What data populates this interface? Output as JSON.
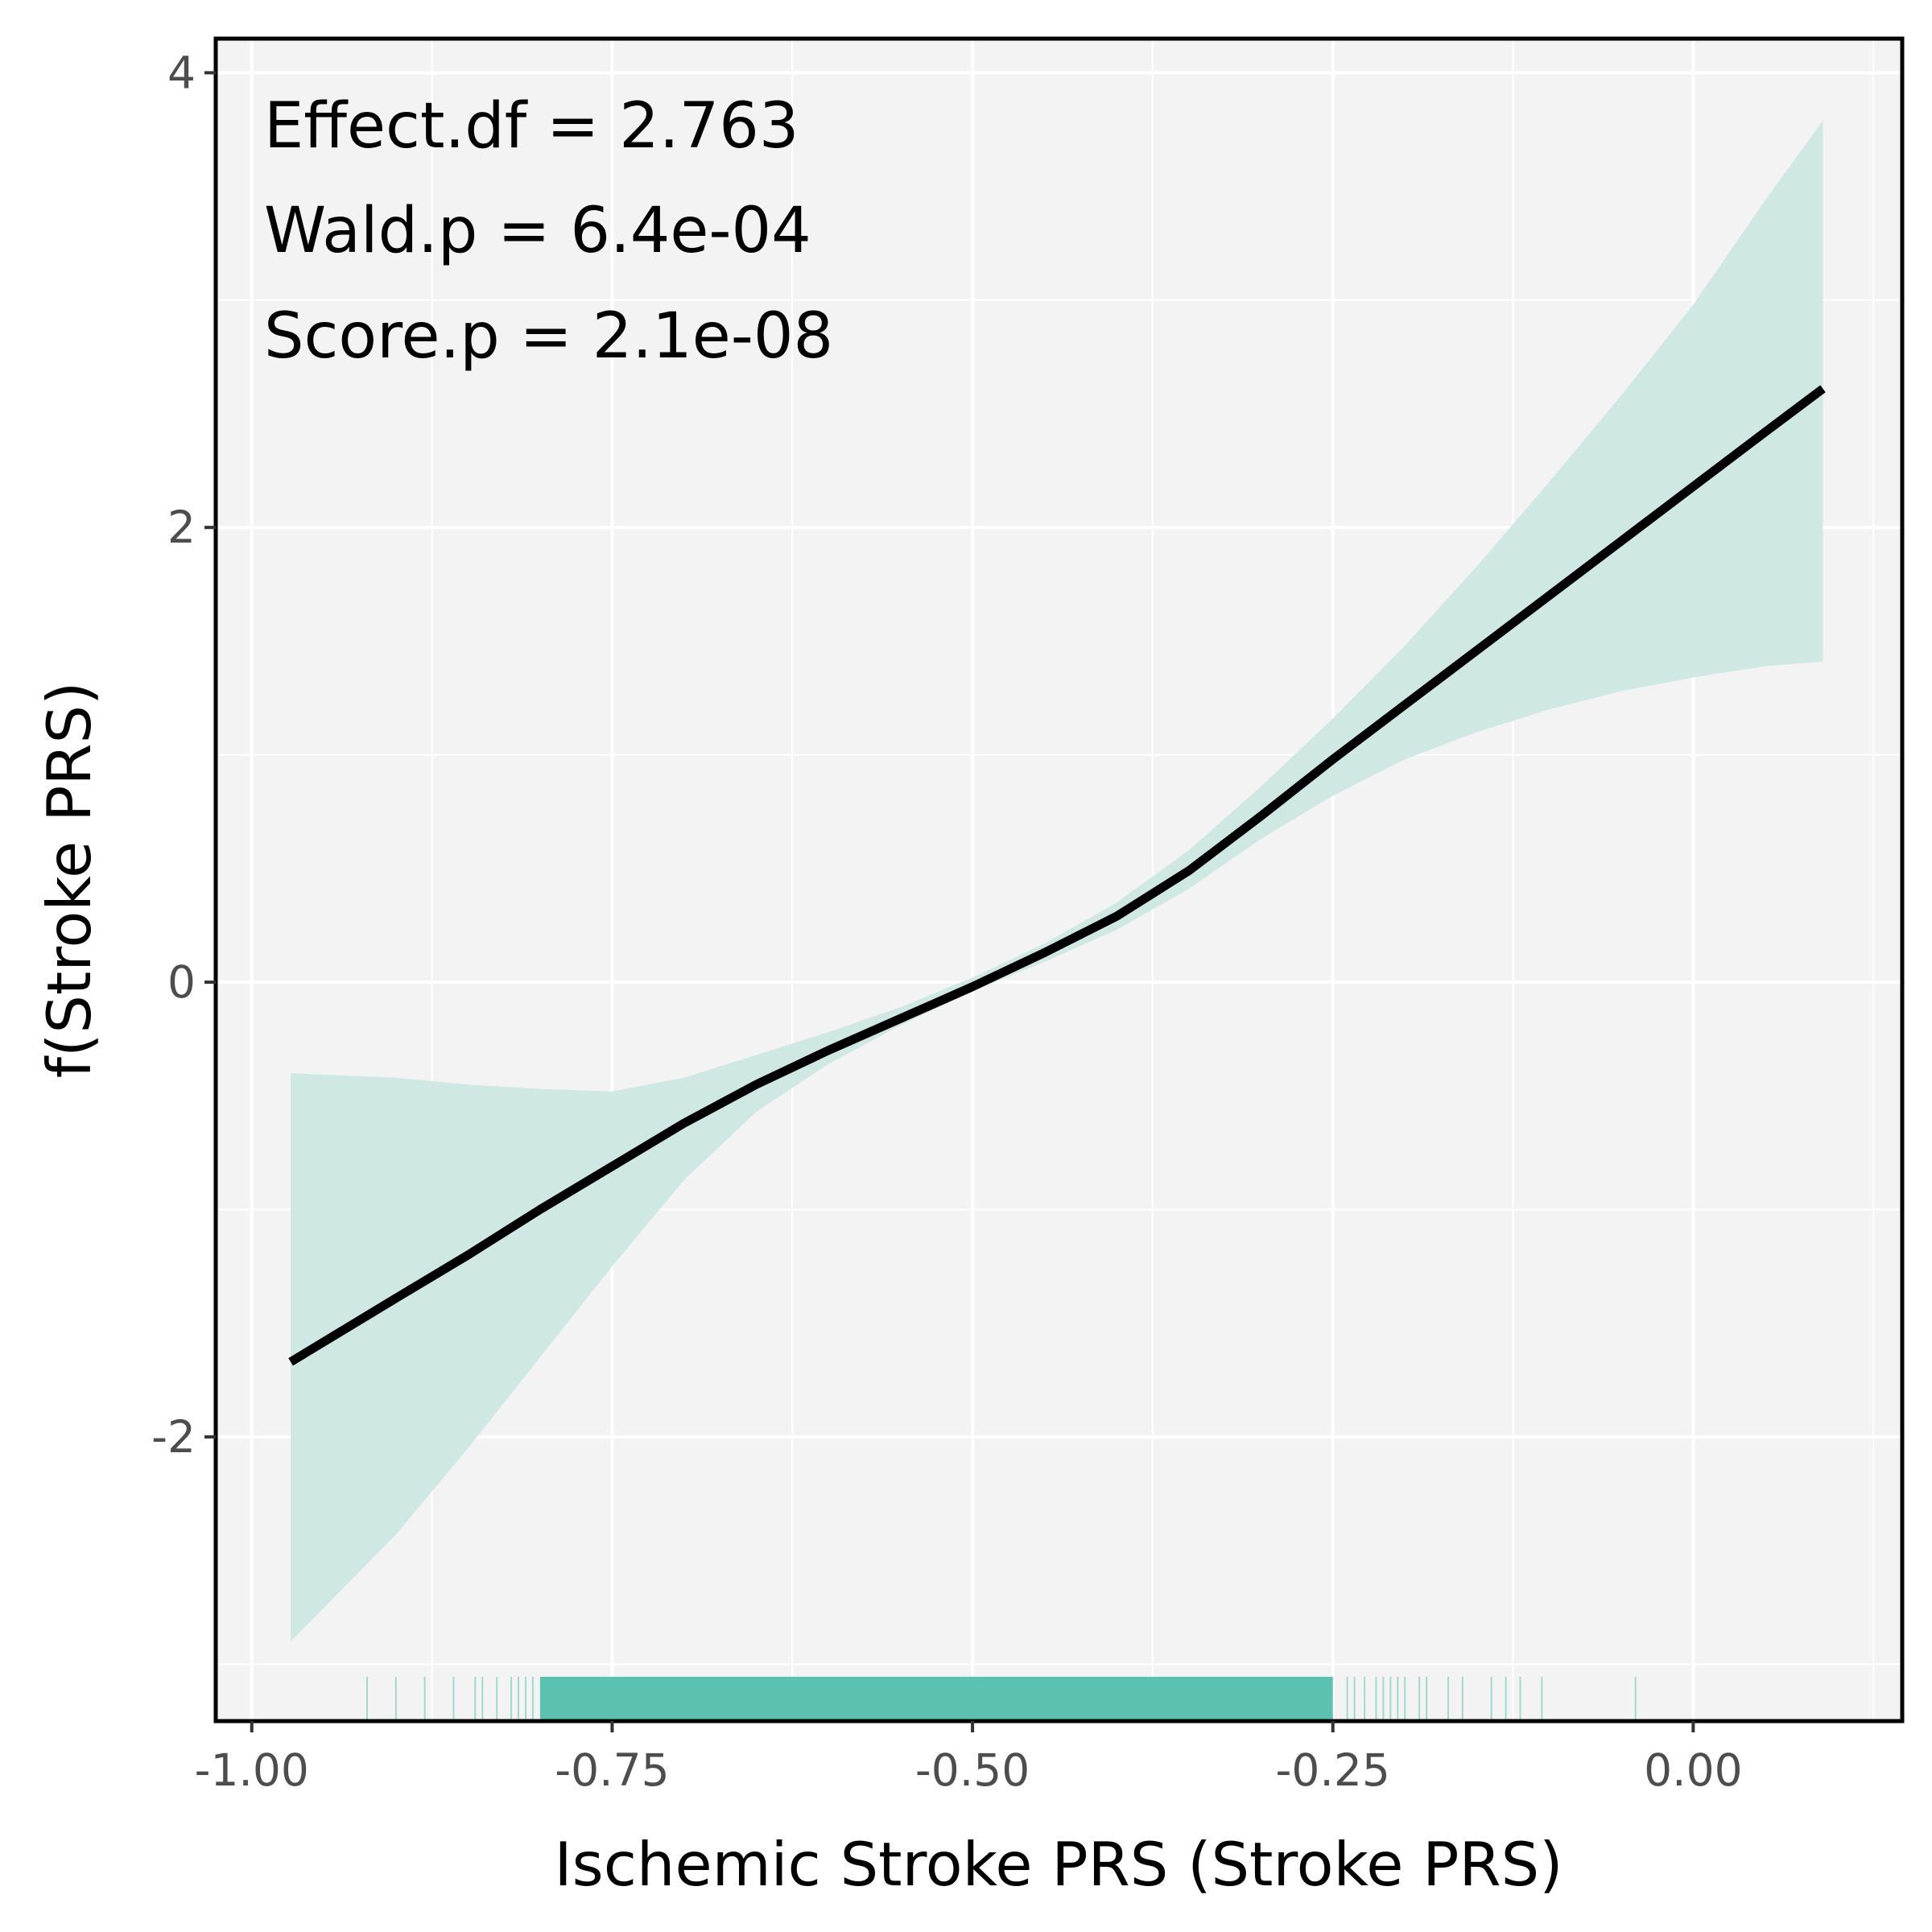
{
  "chart_data": {
    "type": "line",
    "title": "",
    "xlabel": "Ischemic Stroke PRS (Stroke PRS)",
    "ylabel": "f(Stroke PRS)",
    "xlim": [
      -1.025,
      0.145
    ],
    "ylim": [
      -3.25,
      4.15
    ],
    "x_ticks": [
      -1.0,
      -0.75,
      -0.5,
      -0.25,
      0.0
    ],
    "x_tick_labels": [
      "-1.00",
      "-0.75",
      "-0.50",
      "-0.25",
      "0.00"
    ],
    "y_ticks": [
      -2,
      0,
      2,
      4
    ],
    "y_tick_labels": [
      "-2",
      "0",
      "2",
      "4"
    ],
    "grid": true,
    "annotations": [
      "Effect.df = 2.763",
      "Wald.p = 6.4e-04",
      "Score.p = 2.1e-08"
    ],
    "series": [
      {
        "x": [
          -0.973,
          -0.9,
          -0.85,
          -0.8,
          -0.75,
          -0.7,
          -0.65,
          -0.6,
          -0.55,
          -0.5,
          -0.45,
          -0.4,
          -0.35,
          -0.3,
          -0.25,
          -0.2,
          -0.15,
          -0.1,
          -0.05,
          0.0,
          0.05,
          0.09
        ],
        "values": [
          -1.67,
          -1.39,
          -1.2,
          -1.0,
          -0.81,
          -0.62,
          -0.45,
          -0.3,
          -0.16,
          -0.02,
          0.13,
          0.29,
          0.49,
          0.73,
          0.98,
          1.22,
          1.46,
          1.7,
          1.94,
          2.18,
          2.42,
          2.61
        ],
        "lower": [
          -2.9,
          -2.43,
          -2.05,
          -1.65,
          -1.25,
          -0.87,
          -0.57,
          -0.36,
          -0.19,
          -0.04,
          0.09,
          0.23,
          0.41,
          0.63,
          0.82,
          0.98,
          1.1,
          1.2,
          1.28,
          1.34,
          1.39,
          1.41
        ],
        "upper": [
          -0.4,
          -0.42,
          -0.45,
          -0.47,
          -0.48,
          -0.42,
          -0.32,
          -0.22,
          -0.11,
          0.02,
          0.17,
          0.35,
          0.58,
          0.86,
          1.16,
          1.48,
          1.83,
          2.2,
          2.58,
          2.98,
          3.44,
          3.79
        ]
      }
    ],
    "rug": {
      "range": [
        -0.92,
        -0.04
      ],
      "dense_range": [
        -0.8,
        -0.25
      ],
      "sparse_x": [
        -0.92,
        -0.9,
        -0.88,
        -0.86,
        -0.845,
        -0.84,
        -0.83,
        -0.82,
        -0.815,
        -0.81,
        -0.805,
        -0.79,
        -0.785,
        -0.78,
        -0.775,
        -0.772,
        -0.24,
        -0.235,
        -0.228,
        -0.22,
        -0.215,
        -0.21,
        -0.205,
        -0.2,
        -0.19,
        -0.185,
        -0.17,
        -0.16,
        -0.14,
        -0.13,
        -0.12,
        -0.105,
        -0.04
      ]
    },
    "colors": {
      "line": "#000000",
      "ribbon": "#cfe8e4",
      "rug": "#5cc2b0",
      "panel": "#f3f3f3",
      "grid": "#ffffff",
      "frame": "#000000"
    }
  }
}
